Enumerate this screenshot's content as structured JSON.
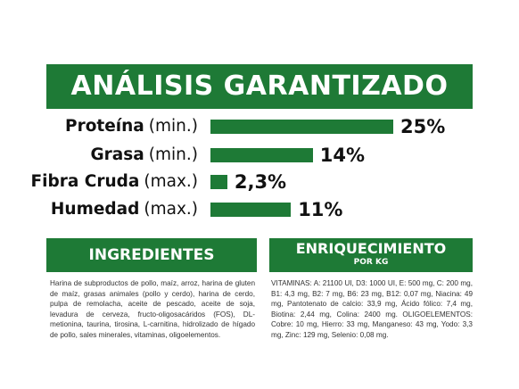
{
  "title": "ANÁLISIS GARANTIZADO",
  "analysis": [
    {
      "nutrient": "Proteína",
      "qualifier": "(min.)",
      "value": "25%",
      "percent": 25
    },
    {
      "nutrient": "Grasa",
      "qualifier": "(min.)",
      "value": "14%",
      "percent": 14
    },
    {
      "nutrient": "Fibra Cruda",
      "qualifier": "(max.)",
      "value": "2,3%",
      "percent": 2.3
    },
    {
      "nutrient": "Humedad",
      "qualifier": "(max.)",
      "value": "11%",
      "percent": 11
    }
  ],
  "ingredients": {
    "heading": "INGREDIENTES",
    "text": "Harina de subproductos de pollo, maíz, arroz, harina de gluten de maíz, grasas animales (pollo y cerdo), harina de cerdo, pulpa de remolacha, aceite de pescado, aceite de soja, levadura de cerveza, fructo-oligosacáridos (FOS), DL-metionina, taurina, tirosina, L-carnitina, hidrolizado de hígado de pollo, sales minerales, vitaminas, oligoelementos."
  },
  "enrichment": {
    "heading": "ENRIQUECIMIENTO",
    "subheading": "POR KG",
    "text": "VITAMINAS: A: 21100 UI, D3: 1000 UI, E: 500 mg, C: 200 mg, B1: 4,3 mg, B2: 7 mg, B6: 23 mg, B12: 0,07 mg, Niacina: 49 mg, Pantotenato de calcio: 33,9 mg, Ácido fólico: 7,4 mg, Biotina: 2,44 mg, Colina: 2400 mg. OLIGOELEMENTOS: Cobre: 10 mg, Hierro: 33 mg, Manganeso: 43 mg, Yodo: 3,3 mg, Zinc: 129 mg, Selenio: 0,08 mg."
  },
  "colors": {
    "accent": "#1e7a36"
  }
}
